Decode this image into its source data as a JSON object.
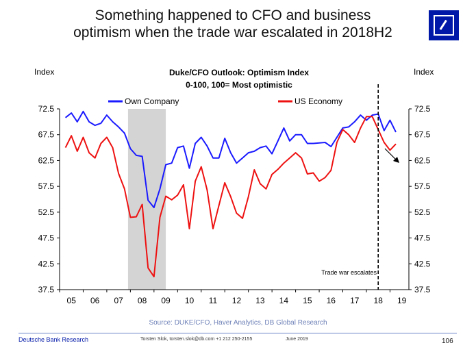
{
  "slide": {
    "title_line1": "Something happened to CFO and business",
    "title_line2": "optimism when the trade war escalated in 2018H2",
    "source": "Source: DUKE/CFO, Haver Analytics, DB Global Research",
    "footer_left": "Deutsche Bank Research",
    "footer_contact": "Torsten Slok, torsten.slok@db.com +1 212 250-2155",
    "footer_date": "June 2019",
    "page_number": "106",
    "logo_icon": "deutsche-bank-logo",
    "accent_color": "#0018a8"
  },
  "chart_data": {
    "type": "line",
    "title": "Duke/CFO Outlook: Optimism Index",
    "subtitle": "0-100, 100= Most optimistic",
    "ylabel_left": "Index",
    "ylabel_right": "Index",
    "xlabel": "",
    "ylim": [
      37.5,
      72.5
    ],
    "yticks": [
      72.5,
      67.5,
      62.5,
      57.5,
      52.5,
      47.5,
      42.5,
      37.5
    ],
    "xlim": [
      2005,
      2019.8
    ],
    "xticks": [
      "05",
      "06",
      "07",
      "08",
      "09",
      "10",
      "11",
      "12",
      "13",
      "14",
      "15",
      "16",
      "17",
      "18",
      "19"
    ],
    "legend_position": "top",
    "grid": false,
    "recession_shading": {
      "start": 2007.9,
      "end": 2009.5,
      "color": "#d4d4d4"
    },
    "annotation": {
      "text": "Trade war escalates",
      "x": 2018.5
    },
    "series": [
      {
        "name": "Own Company",
        "color": "#1a1aff",
        "points": [
          [
            2005.25,
            70.8
          ],
          [
            2005.5,
            71.7
          ],
          [
            2005.75,
            70.0
          ],
          [
            2006.0,
            72.0
          ],
          [
            2006.25,
            70.0
          ],
          [
            2006.5,
            69.3
          ],
          [
            2006.75,
            69.7
          ],
          [
            2007.0,
            71.3
          ],
          [
            2007.25,
            70.0
          ],
          [
            2007.5,
            69.0
          ],
          [
            2007.75,
            67.8
          ],
          [
            2008.0,
            64.8
          ],
          [
            2008.25,
            63.5
          ],
          [
            2008.5,
            63.3
          ],
          [
            2008.75,
            54.8
          ],
          [
            2009.0,
            53.4
          ],
          [
            2009.25,
            57.0
          ],
          [
            2009.5,
            61.7
          ],
          [
            2009.75,
            62.0
          ],
          [
            2010.0,
            65.0
          ],
          [
            2010.25,
            65.3
          ],
          [
            2010.5,
            61.0
          ],
          [
            2010.75,
            65.8
          ],
          [
            2011.0,
            67.0
          ],
          [
            2011.25,
            65.3
          ],
          [
            2011.5,
            63.0
          ],
          [
            2011.75,
            63.0
          ],
          [
            2012.0,
            66.8
          ],
          [
            2012.25,
            64.0
          ],
          [
            2012.5,
            62.0
          ],
          [
            2012.75,
            63.0
          ],
          [
            2013.0,
            64.0
          ],
          [
            2013.25,
            64.3
          ],
          [
            2013.5,
            65.0
          ],
          [
            2013.75,
            65.3
          ],
          [
            2014.0,
            63.8
          ],
          [
            2014.25,
            66.3
          ],
          [
            2014.5,
            68.8
          ],
          [
            2014.75,
            66.3
          ],
          [
            2015.0,
            67.5
          ],
          [
            2015.25,
            67.5
          ],
          [
            2015.5,
            65.8
          ],
          [
            2015.75,
            65.8
          ],
          [
            2016.0,
            65.9
          ],
          [
            2016.25,
            66.0
          ],
          [
            2016.5,
            65.2
          ],
          [
            2016.75,
            67.0
          ],
          [
            2017.0,
            68.8
          ],
          [
            2017.25,
            69.0
          ],
          [
            2017.5,
            70.0
          ],
          [
            2017.75,
            71.3
          ],
          [
            2018.0,
            70.3
          ],
          [
            2018.25,
            71.3
          ],
          [
            2018.5,
            71.5
          ],
          [
            2018.75,
            68.3
          ],
          [
            2019.0,
            70.3
          ],
          [
            2019.25,
            68.0
          ]
        ]
      },
      {
        "name": "US Economy",
        "color": "#ee1111",
        "points": [
          [
            2005.25,
            65.0
          ],
          [
            2005.5,
            67.3
          ],
          [
            2005.75,
            64.3
          ],
          [
            2006.0,
            67.0
          ],
          [
            2006.25,
            64.0
          ],
          [
            2006.5,
            63.0
          ],
          [
            2006.75,
            65.8
          ],
          [
            2007.0,
            67.0
          ],
          [
            2007.25,
            65.0
          ],
          [
            2007.5,
            60.0
          ],
          [
            2007.75,
            57.0
          ],
          [
            2008.0,
            51.5
          ],
          [
            2008.25,
            51.6
          ],
          [
            2008.5,
            54.0
          ],
          [
            2008.75,
            41.7
          ],
          [
            2009.0,
            40.0
          ],
          [
            2009.25,
            51.5
          ],
          [
            2009.5,
            55.6
          ],
          [
            2009.75,
            54.9
          ],
          [
            2010.0,
            55.8
          ],
          [
            2010.25,
            57.8
          ],
          [
            2010.5,
            49.3
          ],
          [
            2010.75,
            58.5
          ],
          [
            2011.0,
            61.3
          ],
          [
            2011.25,
            56.8
          ],
          [
            2011.5,
            49.3
          ],
          [
            2011.75,
            53.8
          ],
          [
            2012.0,
            58.2
          ],
          [
            2012.25,
            55.5
          ],
          [
            2012.5,
            52.3
          ],
          [
            2012.75,
            51.3
          ],
          [
            2013.0,
            55.5
          ],
          [
            2013.25,
            60.7
          ],
          [
            2013.5,
            58.0
          ],
          [
            2013.75,
            57.0
          ],
          [
            2014.0,
            59.8
          ],
          [
            2014.25,
            60.8
          ],
          [
            2014.5,
            62.0
          ],
          [
            2014.75,
            63.0
          ],
          [
            2015.0,
            64.0
          ],
          [
            2015.25,
            63.0
          ],
          [
            2015.5,
            59.9
          ],
          [
            2015.75,
            60.1
          ],
          [
            2016.0,
            58.5
          ],
          [
            2016.25,
            59.2
          ],
          [
            2016.5,
            60.6
          ],
          [
            2016.75,
            66.0
          ],
          [
            2017.0,
            68.5
          ],
          [
            2017.25,
            67.5
          ],
          [
            2017.5,
            66.0
          ],
          [
            2017.75,
            68.8
          ],
          [
            2018.0,
            71.0
          ],
          [
            2018.25,
            71.0
          ],
          [
            2018.5,
            68.5
          ],
          [
            2018.75,
            66.0
          ],
          [
            2019.0,
            64.5
          ],
          [
            2019.25,
            65.7
          ]
        ]
      }
    ]
  }
}
